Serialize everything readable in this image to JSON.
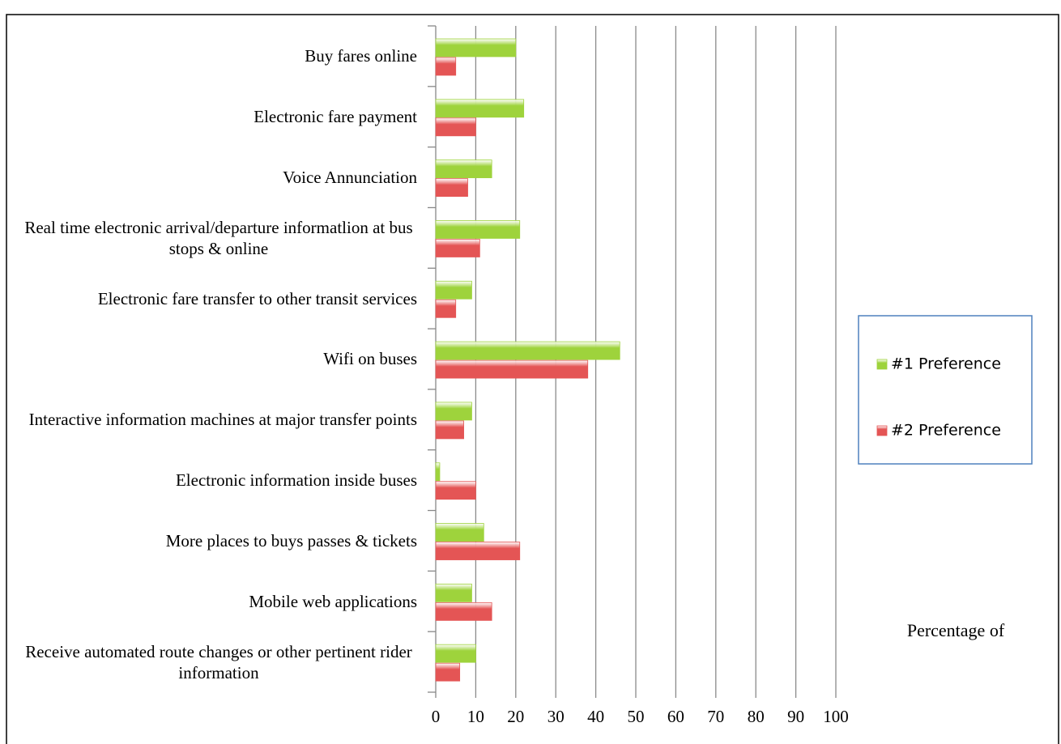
{
  "chart_data": {
    "type": "bar",
    "orientation": "horizontal",
    "x_label": "Percentage of",
    "categories": [
      "Buy fares online",
      "Electronic fare payment",
      "Voice Annunciation",
      "Real time electronic arrival/departure informatlion at bus stops & online",
      "Electronic fare transfer to other transit services",
      "Wifi on buses",
      "Interactive information machines at major transfer points",
      "Electronic information inside buses",
      "More places to buys passes & tickets",
      "Mobile web applications",
      "Receive automated route changes or other pertinent rider information"
    ],
    "series": [
      {
        "name": "#1 Preference",
        "color": "#9ed33c",
        "values": [
          20,
          22,
          14,
          21,
          9,
          46,
          9,
          1,
          12,
          9,
          10
        ]
      },
      {
        "name": "#2 Preference",
        "color": "#e45555",
        "values": [
          5,
          10,
          8,
          11,
          5,
          38,
          7,
          10,
          21,
          14,
          6
        ]
      }
    ],
    "xlim": [
      0,
      100
    ],
    "xticks": [
      0,
      10,
      20,
      30,
      40,
      50,
      60,
      70,
      80,
      90,
      100
    ],
    "grid": true,
    "legend": "right"
  }
}
